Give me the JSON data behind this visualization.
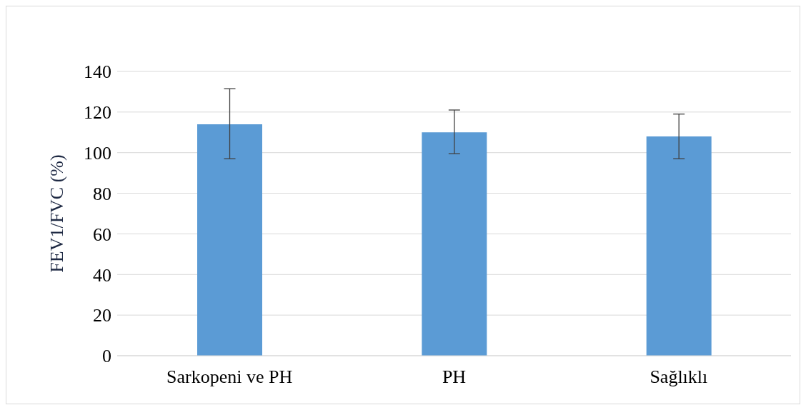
{
  "chart_data": {
    "type": "bar",
    "ylabel": "FEV1/FVC (%)",
    "categories": [
      "Sarkopeni ve PH",
      "PH",
      "Sağlıklı"
    ],
    "values": [
      114,
      110,
      108
    ],
    "color": "#5b9bd5",
    "errors": [
      [
        97,
        131.5
      ],
      [
        99.5,
        121
      ],
      [
        97,
        119
      ]
    ],
    "ylim": [
      0,
      140
    ],
    "yticks": [
      0,
      20,
      40,
      60,
      80,
      100,
      120,
      140
    ],
    "grid": "y"
  }
}
